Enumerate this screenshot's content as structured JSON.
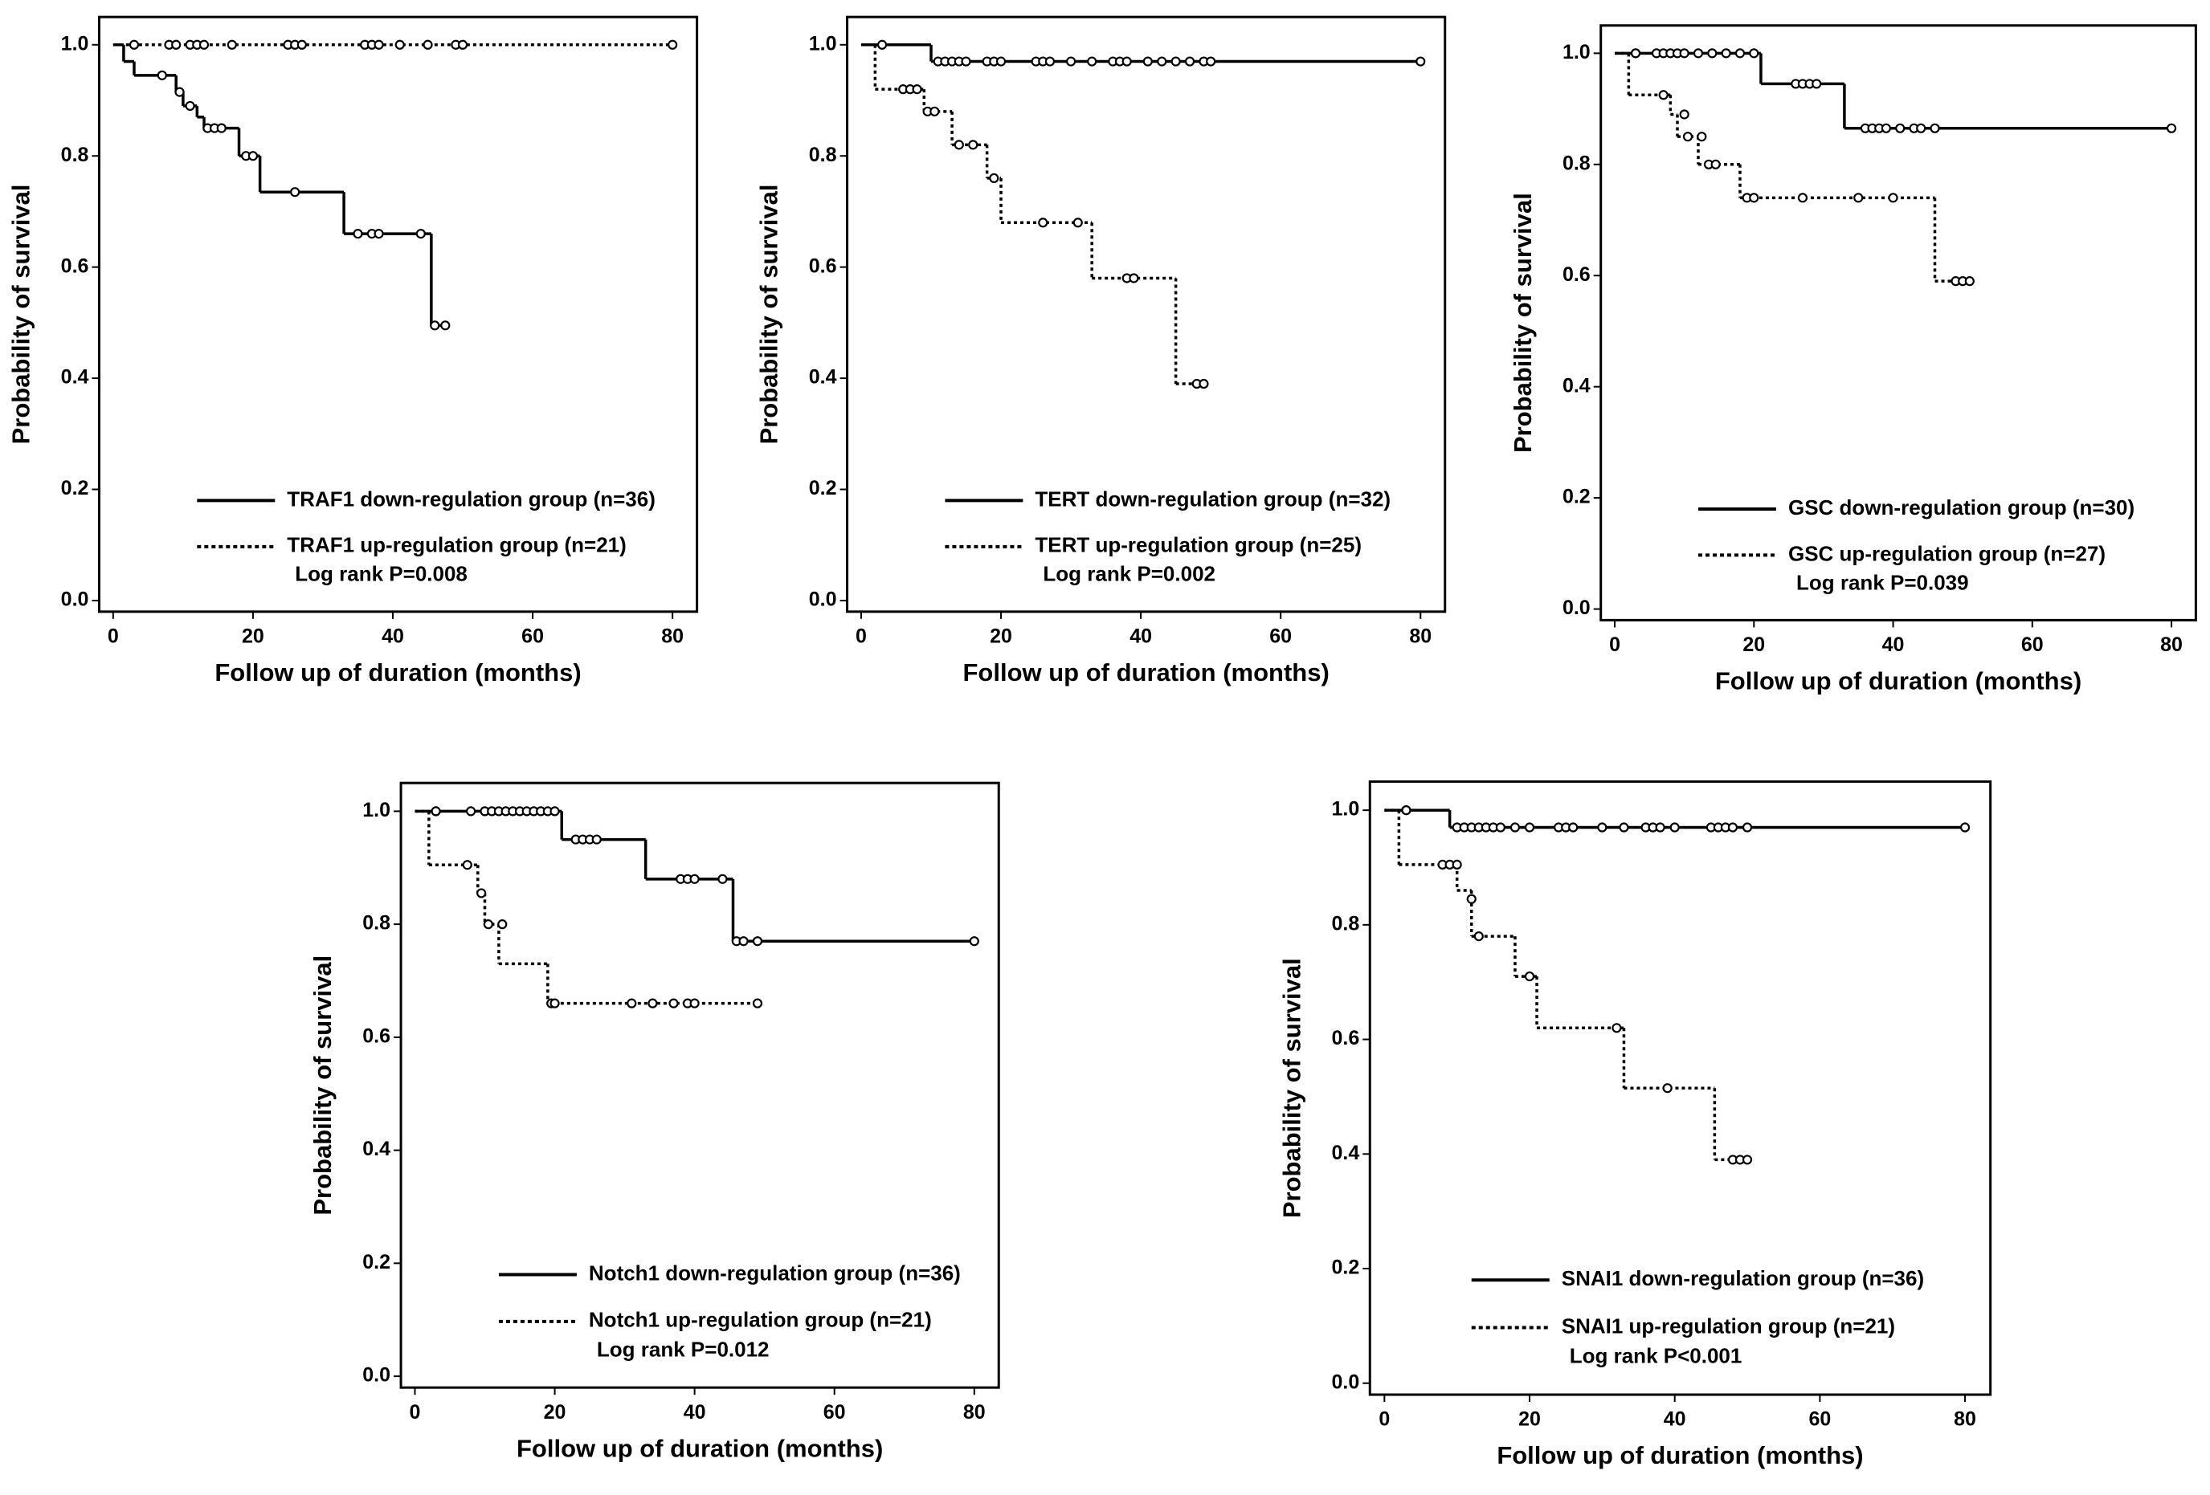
{
  "chart_data": [
    {
      "type": "line",
      "x_label": "Follow up of duration (months)",
      "y_label": "Probability of survival",
      "annotation": "Log rank P=0.008",
      "xlim": [
        -2,
        83.5
      ],
      "ylim": [
        -0.02,
        1.05
      ],
      "xticks": [
        0,
        20,
        40,
        60,
        80
      ],
      "yticks": [
        {
          "value": 0,
          "label": "0.0"
        },
        0.2,
        0.4,
        0.6,
        0.8,
        {
          "value": 1,
          "label": "1.0"
        }
      ],
      "series": [
        {
          "name": "TRAF1 down-regulation group (n=36)",
          "color": "#000000",
          "dash": "solid",
          "x": [
            0,
            1.5,
            3,
            9,
            10,
            12,
            13,
            18,
            21,
            33,
            45.5,
            47.5
          ],
          "values": [
            1.0,
            0.97,
            0.945,
            0.915,
            0.89,
            0.87,
            0.85,
            0.8,
            0.735,
            0.66,
            0.495,
            0.495
          ],
          "censor_x": [
            7,
            9.5,
            11,
            13.5,
            14.5,
            15.5,
            19,
            20,
            26,
            35,
            37,
            38,
            44,
            46,
            47.5
          ],
          "censor_values": [
            0.945,
            0.915,
            0.89,
            0.85,
            0.85,
            0.85,
            0.8,
            0.8,
            0.735,
            0.66,
            0.66,
            0.66,
            0.66,
            0.495,
            0.495
          ]
        },
        {
          "name": "TRAF1 up-regulation group (n=21)",
          "color": "#000000",
          "dash": "dotted",
          "x": [
            0,
            80
          ],
          "values": [
            1.0,
            1.0
          ],
          "censor_x": [
            3,
            8,
            9,
            11,
            12,
            13,
            17,
            25,
            26,
            27,
            36,
            37,
            38,
            41,
            45,
            49,
            50,
            80
          ],
          "censor_values": [
            1,
            1,
            1,
            1,
            1,
            1,
            1,
            1,
            1,
            1,
            1,
            1,
            1,
            1,
            1,
            1,
            1,
            1
          ]
        }
      ]
    },
    {
      "type": "line",
      "x_label": "Follow up of duration (months)",
      "y_label": "Probability of survival",
      "annotation": "Log rank P=0.002",
      "xlim": [
        -2,
        83.5
      ],
      "ylim": [
        -0.02,
        1.05
      ],
      "xticks": [
        0,
        20,
        40,
        60,
        80
      ],
      "yticks": [
        {
          "value": 0,
          "label": "0.0"
        },
        0.2,
        0.4,
        0.6,
        0.8,
        {
          "value": 1,
          "label": "1.0"
        }
      ],
      "series": [
        {
          "name": "TERT down-regulation group (n=32)",
          "color": "#000000",
          "dash": "solid",
          "x": [
            0,
            10,
            80
          ],
          "values": [
            1.0,
            0.97,
            0.97
          ],
          "censor_x": [
            11,
            12,
            13,
            14,
            15,
            18,
            19,
            20,
            25,
            26,
            27,
            30,
            33,
            36,
            37,
            38,
            41,
            43,
            45,
            47,
            49,
            50,
            80
          ],
          "censor_values": [
            0.97,
            0.97,
            0.97,
            0.97,
            0.97,
            0.97,
            0.97,
            0.97,
            0.97,
            0.97,
            0.97,
            0.97,
            0.97,
            0.97,
            0.97,
            0.97,
            0.97,
            0.97,
            0.97,
            0.97,
            0.97,
            0.97,
            0.97
          ]
        },
        {
          "name": "TERT up-regulation group (n=25)",
          "color": "#000000",
          "dash": "dotted",
          "x": [
            0,
            2,
            9,
            13,
            18,
            20,
            33,
            45,
            49
          ],
          "values": [
            1.0,
            0.92,
            0.88,
            0.82,
            0.76,
            0.68,
            0.58,
            0.39,
            0.39
          ],
          "censor_x": [
            3,
            6,
            7,
            8,
            9.5,
            10.5,
            14,
            16,
            19,
            26,
            31,
            38,
            39,
            48,
            49
          ],
          "censor_values": [
            1.0,
            0.92,
            0.92,
            0.92,
            0.88,
            0.88,
            0.82,
            0.82,
            0.76,
            0.68,
            0.68,
            0.58,
            0.58,
            0.39,
            0.39
          ]
        }
      ]
    },
    {
      "type": "line",
      "x_label": "Follow up of duration (months)",
      "y_label": "Probability of survival",
      "annotation": "Log rank P=0.039",
      "xlim": [
        -2,
        83.5
      ],
      "ylim": [
        -0.02,
        1.05
      ],
      "xticks": [
        0,
        20,
        40,
        60,
        80
      ],
      "yticks": [
        {
          "value": 0,
          "label": "0.0"
        },
        0.2,
        0.4,
        0.6,
        0.8,
        {
          "value": 1,
          "label": "1.0"
        }
      ],
      "series": [
        {
          "name": "GSC down-regulation group (n=30)",
          "color": "#000000",
          "dash": "solid",
          "x": [
            0,
            21,
            33,
            80
          ],
          "values": [
            1.0,
            0.945,
            0.865,
            0.865
          ],
          "censor_x": [
            3,
            6,
            7,
            8,
            9,
            10,
            12,
            14,
            16,
            18,
            20,
            26,
            27,
            28,
            29,
            36,
            37,
            38,
            39,
            41,
            43,
            44,
            46,
            80
          ],
          "censor_values": [
            1,
            1,
            1,
            1,
            1,
            1,
            1,
            1,
            1,
            1,
            1,
            0.945,
            0.945,
            0.945,
            0.945,
            0.865,
            0.865,
            0.865,
            0.865,
            0.865,
            0.865,
            0.865,
            0.865,
            0.865
          ]
        },
        {
          "name": "GSC up-regulation group (n=27)",
          "color": "#000000",
          "dash": "dotted",
          "x": [
            0,
            2,
            8,
            9,
            12,
            18,
            46,
            51
          ],
          "values": [
            1.0,
            0.925,
            0.89,
            0.85,
            0.8,
            0.74,
            0.59,
            0.59
          ],
          "censor_x": [
            3,
            7,
            10,
            10.5,
            12.5,
            13.5,
            14.5,
            19,
            20,
            27,
            35,
            40,
            49,
            50,
            51
          ],
          "censor_values": [
            1.0,
            0.925,
            0.89,
            0.85,
            0.85,
            0.8,
            0.8,
            0.74,
            0.74,
            0.74,
            0.74,
            0.74,
            0.59,
            0.59,
            0.59
          ]
        }
      ]
    },
    {
      "type": "line",
      "x_label": "Follow up of duration (months)",
      "y_label": "Probability of survival",
      "annotation": "Log rank P=0.012",
      "xlim": [
        -2,
        83.5
      ],
      "ylim": [
        -0.02,
        1.05
      ],
      "xticks": [
        0,
        20,
        40,
        60,
        80
      ],
      "yticks": [
        {
          "value": 0,
          "label": "0.0"
        },
        0.2,
        0.4,
        0.6,
        0.8,
        {
          "value": 1,
          "label": "1.0"
        }
      ],
      "series": [
        {
          "name": "Notch1 down-regulation group (n=36)",
          "color": "#000000",
          "dash": "solid",
          "x": [
            0,
            21,
            33,
            45.5,
            80
          ],
          "values": [
            1.0,
            0.95,
            0.88,
            0.77,
            0.77
          ],
          "censor_x": [
            3,
            8,
            10,
            11,
            12,
            13,
            14,
            15,
            16,
            17,
            18,
            19,
            20,
            23,
            24,
            25,
            26,
            38,
            39,
            40,
            44,
            46,
            47,
            49,
            80
          ],
          "censor_values": [
            1,
            1,
            1,
            1,
            1,
            1,
            1,
            1,
            1,
            1,
            1,
            1,
            1,
            0.95,
            0.95,
            0.95,
            0.95,
            0.88,
            0.88,
            0.88,
            0.88,
            0.77,
            0.77,
            0.77,
            0.77
          ]
        },
        {
          "name": "Notch1 up-regulation group (n=21)",
          "color": "#000000",
          "dash": "dotted",
          "x": [
            0,
            2,
            9,
            10,
            12,
            19,
            49
          ],
          "values": [
            1.0,
            0.905,
            0.855,
            0.8,
            0.73,
            0.66,
            0.66
          ],
          "censor_x": [
            3,
            7.5,
            9.5,
            10.5,
            12.5,
            19.5,
            20,
            31,
            34,
            37,
            39,
            40,
            49
          ],
          "censor_values": [
            1.0,
            0.905,
            0.855,
            0.8,
            0.8,
            0.66,
            0.66,
            0.66,
            0.66,
            0.66,
            0.66,
            0.66,
            0.66
          ]
        }
      ]
    },
    {
      "type": "line",
      "x_label": "Follow up of duration (months)",
      "y_label": "Probability of survival",
      "annotation": "Log rank P<0.001",
      "xlim": [
        -2,
        83.5
      ],
      "ylim": [
        -0.02,
        1.05
      ],
      "xticks": [
        0,
        20,
        40,
        60,
        80
      ],
      "yticks": [
        {
          "value": 0,
          "label": "0.0"
        },
        0.2,
        0.4,
        0.6,
        0.8,
        {
          "value": 1,
          "label": "1.0"
        }
      ],
      "series": [
        {
          "name": "SNAI1 down-regulation group (n=36)",
          "color": "#000000",
          "dash": "solid",
          "x": [
            0,
            9,
            80
          ],
          "values": [
            1.0,
            0.97,
            0.97
          ],
          "censor_x": [
            3,
            10,
            11,
            12,
            13,
            14,
            15,
            16,
            18,
            20,
            24,
            25,
            26,
            30,
            33,
            36,
            37,
            38,
            40,
            45,
            46,
            47,
            48,
            50,
            80
          ],
          "censor_values": [
            1.0,
            0.97,
            0.97,
            0.97,
            0.97,
            0.97,
            0.97,
            0.97,
            0.97,
            0.97,
            0.97,
            0.97,
            0.97,
            0.97,
            0.97,
            0.97,
            0.97,
            0.97,
            0.97,
            0.97,
            0.97,
            0.97,
            0.97,
            0.97,
            0.97
          ]
        },
        {
          "name": "SNAI1 up-regulation group (n=21)",
          "color": "#000000",
          "dash": "dotted",
          "x": [
            0,
            2,
            10,
            12,
            18,
            21,
            33,
            45.5,
            50
          ],
          "values": [
            1.0,
            0.905,
            0.86,
            0.78,
            0.71,
            0.62,
            0.515,
            0.39,
            0.39
          ],
          "censor_x": [
            3,
            8,
            9,
            10,
            12,
            13,
            20,
            32,
            39,
            48,
            49,
            50
          ],
          "censor_values": [
            1.0,
            0.905,
            0.905,
            0.905,
            0.845,
            0.78,
            0.71,
            0.62,
            0.515,
            0.39,
            0.39,
            0.39
          ]
        }
      ]
    }
  ]
}
